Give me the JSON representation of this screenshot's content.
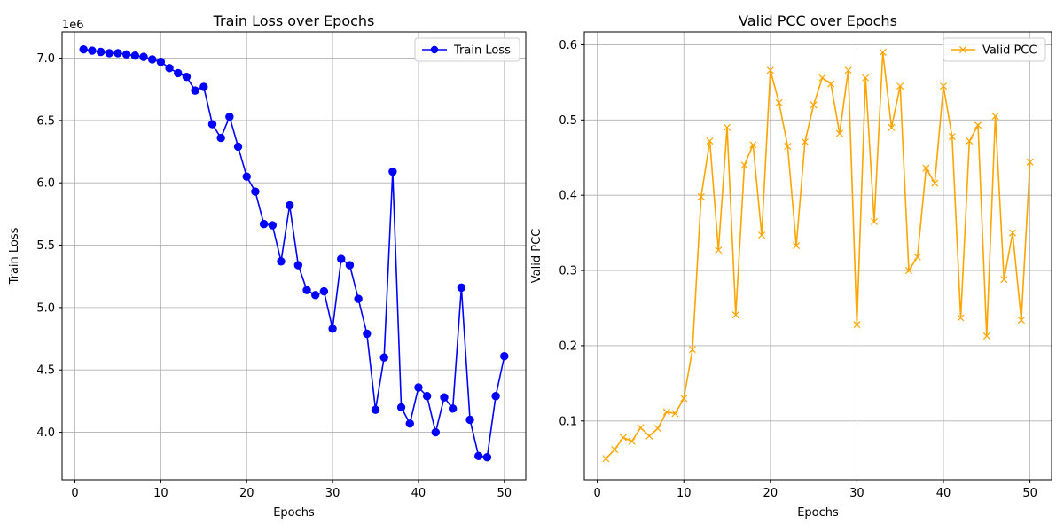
{
  "chart_data": [
    {
      "type": "line",
      "title": "Train Loss over Epochs",
      "xlabel": "Epochs",
      "ylabel": "Train Loss",
      "y_offset_label": "1e6",
      "x_ticks": [
        "0",
        "10",
        "20",
        "30",
        "40",
        "50"
      ],
      "y_ticks": [
        "4.0",
        "4.5",
        "5.0",
        "5.5",
        "6.0",
        "6.5",
        "7.0"
      ],
      "xlim": [
        -1.5,
        52.5
      ],
      "ylim": [
        3.62,
        7.21
      ],
      "grid": true,
      "legend_position": "top-right",
      "color": "#0000ff",
      "marker": "circle",
      "series": [
        {
          "name": "Train Loss",
          "x": [
            1,
            2,
            3,
            4,
            5,
            6,
            7,
            8,
            9,
            10,
            11,
            12,
            13,
            14,
            15,
            16,
            17,
            18,
            19,
            20,
            21,
            22,
            23,
            24,
            25,
            26,
            27,
            28,
            29,
            30,
            31,
            32,
            33,
            34,
            35,
            36,
            37,
            38,
            39,
            40,
            41,
            42,
            43,
            44,
            45,
            46,
            47,
            48,
            49,
            50
          ],
          "values": [
            7.07,
            7.06,
            7.05,
            7.04,
            7.04,
            7.03,
            7.02,
            7.01,
            6.99,
            6.97,
            6.92,
            6.88,
            6.85,
            6.74,
            6.77,
            6.47,
            6.36,
            6.53,
            6.29,
            6.05,
            5.93,
            5.67,
            5.66,
            5.37,
            5.82,
            5.34,
            5.14,
            5.1,
            5.13,
            4.83,
            5.39,
            5.34,
            5.07,
            4.79,
            4.18,
            4.6,
            6.09,
            4.2,
            4.07,
            4.36,
            4.29,
            4.0,
            4.28,
            4.19,
            5.16,
            4.1,
            3.81,
            3.8,
            4.29,
            4.61
          ]
        }
      ]
    },
    {
      "type": "line",
      "title": "Valid PCC over Epochs",
      "xlabel": "Epochs",
      "ylabel": "Valid PCC",
      "x_ticks": [
        "0",
        "10",
        "20",
        "30",
        "40",
        "50"
      ],
      "y_ticks": [
        "0.1",
        "0.2",
        "0.3",
        "0.4",
        "0.5",
        "0.6"
      ],
      "xlim": [
        -1.5,
        52.5
      ],
      "ylim": [
        0.022,
        0.617
      ],
      "grid": true,
      "legend_position": "top-right",
      "color": "#ffa500",
      "marker": "x",
      "series": [
        {
          "name": "Valid PCC",
          "x": [
            1,
            2,
            3,
            4,
            5,
            6,
            7,
            8,
            9,
            10,
            11,
            12,
            13,
            14,
            15,
            16,
            17,
            18,
            19,
            20,
            21,
            22,
            23,
            24,
            25,
            26,
            27,
            28,
            29,
            30,
            31,
            32,
            33,
            34,
            35,
            36,
            37,
            38,
            39,
            40,
            41,
            42,
            43,
            44,
            45,
            46,
            47,
            48,
            49,
            50
          ],
          "values": [
            0.05,
            0.062,
            0.078,
            0.073,
            0.091,
            0.08,
            0.09,
            0.112,
            0.11,
            0.13,
            0.195,
            0.398,
            0.472,
            0.327,
            0.49,
            0.241,
            0.44,
            0.467,
            0.347,
            0.566,
            0.523,
            0.465,
            0.333,
            0.471,
            0.52,
            0.556,
            0.548,
            0.482,
            0.566,
            0.228,
            0.556,
            0.365,
            0.59,
            0.49,
            0.545,
            0.3,
            0.318,
            0.436,
            0.416,
            0.545,
            0.478,
            0.237,
            0.472,
            0.493,
            0.213,
            0.505,
            0.288,
            0.35,
            0.234,
            0.444
          ]
        }
      ]
    }
  ]
}
